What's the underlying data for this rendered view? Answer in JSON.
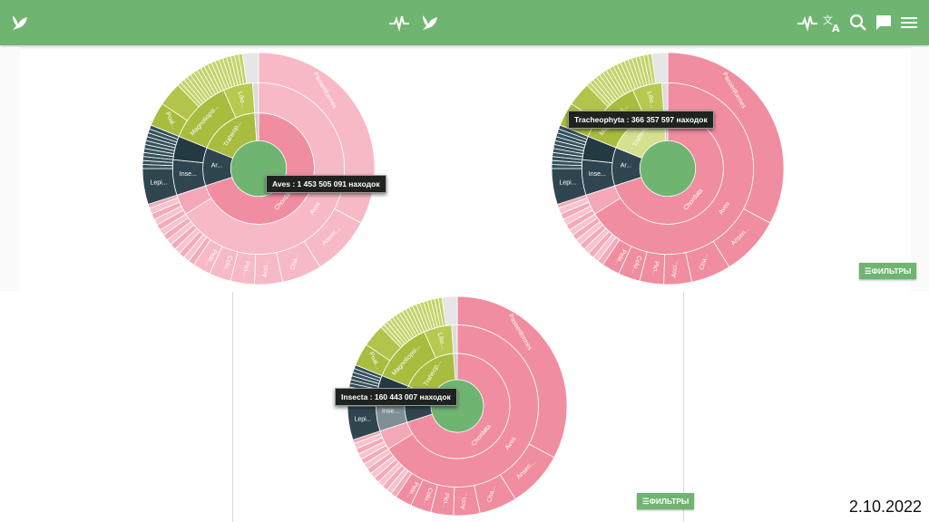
{
  "app": {
    "logo_icon": "gbif-leaf-icon",
    "activity_icon": "pulse-icon",
    "translate_icon": "translate-icon",
    "search_icon": "search-icon",
    "feedback_icon": "comment-icon",
    "menu_icon": "hamburger-menu-icon",
    "accent_color": "#6fb571"
  },
  "charts": [
    {
      "tooltip": "Aves : 1 453 505 091 находок",
      "highlight": "Aves",
      "filter_label": ""
    },
    {
      "tooltip": "Tracheophyta : 366 357 597 находок",
      "highlight": "Tracheophyta",
      "filter_label": "☰ФИЛЬТРЫ"
    },
    {
      "tooltip": "Insecta : 160 443 007 находок",
      "highlight": "Insecta",
      "filter_label": "☰ФИЛЬТРЫ"
    }
  ],
  "segment_labels": {
    "passeriformes": "Passeriformes",
    "anseriformes": "Anseri...",
    "charadriiformes": "Cha...",
    "accipitriformes": "Acci...",
    "piciformes": "Pici...",
    "columbiformes": "Colu...",
    "pelecaniformes": "Pele...",
    "chordata": "Chordata",
    "aves": "Aves",
    "magnoliopsida": "Magnoliopsi...",
    "tracheophyta": "Traheop...",
    "liliopsida": "Lilio...",
    "poales": "Poal...",
    "insecta": "Inse...",
    "arthropoda": "Ar...",
    "lepidoptera": "Lepi..."
  },
  "colors": {
    "animalia_pink": "#f08da0",
    "animalia_light": "#f7b9c5",
    "plantae": "#a8bc3e",
    "arthropod": "#2f4650",
    "center": "#6fb571"
  },
  "date": "2.10.2022"
}
